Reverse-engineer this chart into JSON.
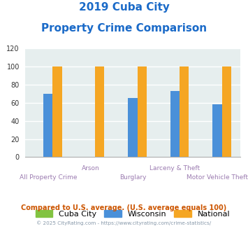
{
  "title_line1": "2019 Cuba City",
  "title_line2": "Property Crime Comparison",
  "cuba_city": [
    0,
    0,
    0,
    0,
    0
  ],
  "wisconsin": [
    70,
    0,
    65,
    73,
    58
  ],
  "national": [
    100,
    100,
    100,
    100,
    100
  ],
  "bar_width": 0.22,
  "ylim": [
    0,
    120
  ],
  "yticks": [
    0,
    20,
    40,
    60,
    80,
    100,
    120
  ],
  "color_cuba": "#82c341",
  "color_wisconsin": "#4a90d9",
  "color_national": "#f5a623",
  "title_color": "#1a6ac8",
  "xlabel_upper_color": "#9b7bb0",
  "xlabel_lower_color": "#9b7bb0",
  "axis_bg": "#e6eeee",
  "grid_color": "#ffffff",
  "footer_text": "Compared to U.S. average. (U.S. average equals 100)",
  "copyright_text": "© 2025 CityRating.com - https://www.cityrating.com/crime-statistics/",
  "footer_color": "#cc5500",
  "copyright_color": "#8899aa",
  "upper_labels": [
    "",
    "Arson",
    "",
    "Larceny & Theft",
    ""
  ],
  "lower_labels": [
    "All Property Crime",
    "",
    "Burglary",
    "",
    "Motor Vehicle Theft"
  ]
}
